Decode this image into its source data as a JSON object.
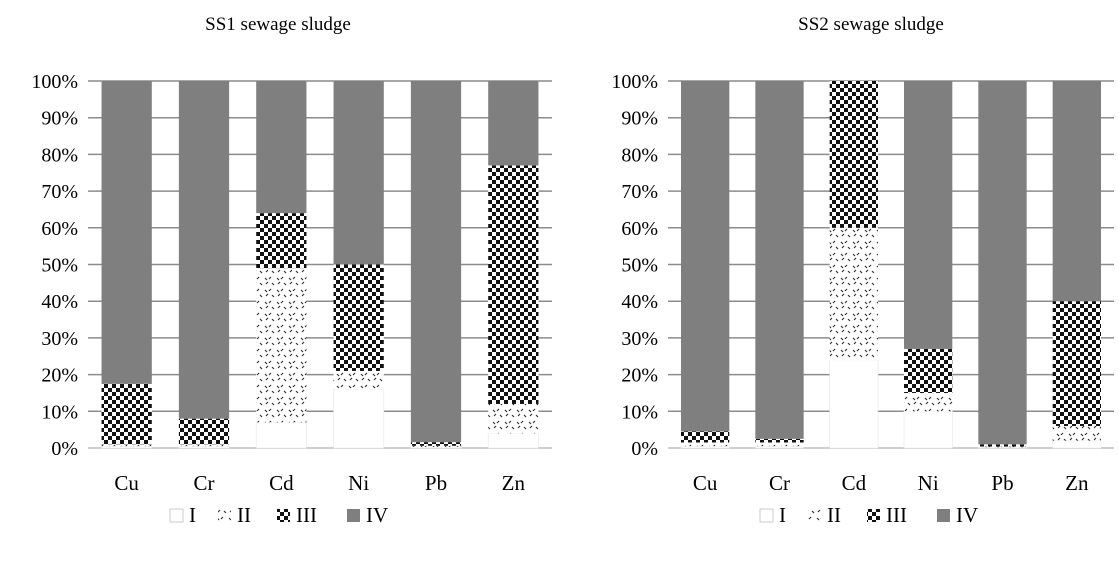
{
  "chart_data": [
    {
      "type": "bar",
      "stacked": true,
      "title": "SS1 sewage sludge",
      "categories": [
        "Cu",
        "Cr",
        "Cd",
        "Ni",
        "Pb",
        "Zn"
      ],
      "ylim": [
        0,
        100
      ],
      "yticks": [
        "0%",
        "10%",
        "20%",
        "30%",
        "40%",
        "50%",
        "60%",
        "70%",
        "80%",
        "90%",
        "100%"
      ],
      "grid": true,
      "legend_position": "bottom",
      "series": [
        {
          "name": "I",
          "values": [
            0.5,
            0.5,
            7,
            16,
            0.3,
            4
          ]
        },
        {
          "name": "II",
          "values": [
            0.5,
            0.5,
            42,
            5,
            0.3,
            8
          ]
        },
        {
          "name": "III",
          "values": [
            16.5,
            7,
            15,
            29,
            1,
            65
          ]
        },
        {
          "name": "IV",
          "values": [
            82.5,
            92,
            36,
            50,
            98.4,
            23
          ]
        }
      ]
    },
    {
      "type": "bar",
      "stacked": true,
      "title": "SS2 sewage sludge",
      "categories": [
        "Cu",
        "Cr",
        "Cd",
        "Ni",
        "Pb",
        "Zn"
      ],
      "ylim": [
        0,
        100
      ],
      "yticks": [
        "0%",
        "10%",
        "20%",
        "30%",
        "40%",
        "50%",
        "60%",
        "70%",
        "80%",
        "90%",
        "100%"
      ],
      "grid": true,
      "legend_position": "bottom",
      "series": [
        {
          "name": "I",
          "values": [
            0.5,
            0.5,
            24,
            10,
            0.2,
            2
          ]
        },
        {
          "name": "II",
          "values": [
            1,
            1,
            36,
            5,
            0.2,
            4
          ]
        },
        {
          "name": "III",
          "values": [
            3,
            1,
            40,
            12,
            0.6,
            34
          ]
        },
        {
          "name": "IV",
          "values": [
            95.5,
            97.5,
            0,
            73,
            99,
            60
          ]
        }
      ]
    }
  ],
  "style": {
    "colors": {
      "I": "#ffffff",
      "II": "#ffffff",
      "III": "#1a1a1a",
      "IV": "#7f7f7f",
      "grid": "#8c8c8c",
      "axis": "#bfbfbf"
    }
  }
}
